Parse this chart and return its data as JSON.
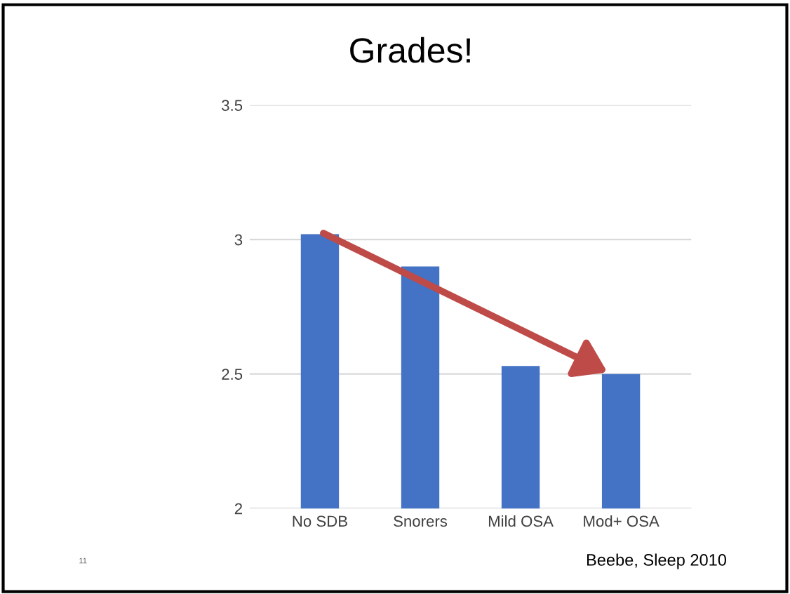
{
  "chart_data": {
    "type": "bar",
    "title": "Grades!",
    "categories": [
      "No SDB",
      "Snorers",
      "Mild OSA",
      "Mod+ OSA"
    ],
    "values": [
      3.02,
      2.9,
      2.53,
      2.5
    ],
    "color": "#4472c4",
    "ylim": [
      2,
      3.5
    ],
    "yticks": [
      2,
      2.5,
      3,
      3.5
    ],
    "grid": "y",
    "annotations": [
      "11",
      "Beebe, Sleep 2010"
    ]
  }
}
